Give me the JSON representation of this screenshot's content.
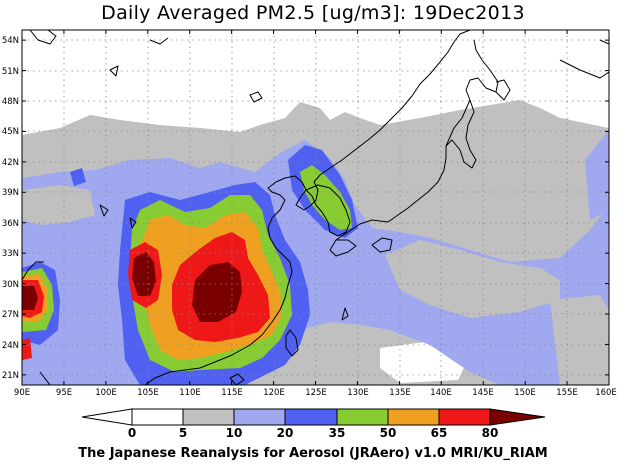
{
  "title": "Daily Averaged PM2.5 [ug/m3]: 19Dec2013",
  "footer": "The Japanese Reanalysis for Aerosol (JRAero) v1.0 MRI/KU_RIAM",
  "map": {
    "lon_range": [
      90,
      160
    ],
    "lat_range": [
      20,
      55
    ],
    "lon_ticks": [
      "90E",
      "95E",
      "100E",
      "105E",
      "110E",
      "115E",
      "120E",
      "125E",
      "130E",
      "135E",
      "140E",
      "145E",
      "150E",
      "155E",
      "160E"
    ],
    "lat_ticks": [
      "21N",
      "24N",
      "27N",
      "30N",
      "33N",
      "36N",
      "39N",
      "42N",
      "45N",
      "48N",
      "51N",
      "54N"
    ],
    "grid": true,
    "variable": "PM2.5",
    "units": "ug/m3"
  },
  "colorbar": {
    "labels": [
      "0",
      "5",
      "10",
      "20",
      "35",
      "50",
      "65",
      "80"
    ],
    "colors": [
      "#ffffff",
      "#c0c0c0",
      "#a0a8f0",
      "#5060f0",
      "#88cc33",
      "#f0a020",
      "#ee1818",
      "#7a0000"
    ]
  }
}
